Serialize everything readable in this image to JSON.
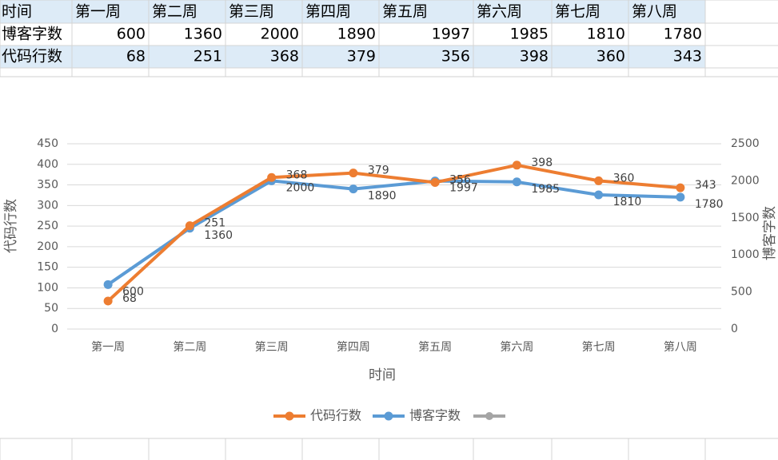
{
  "chart_data": {
    "type": "line",
    "x_label": "时间",
    "categories": [
      "第一周",
      "第二周",
      "第三周",
      "第四周",
      "第五周",
      "第六周",
      "第七周",
      "第八周"
    ],
    "series": [
      {
        "name": "代码行数",
        "color": "#ed7d31",
        "axis": "y",
        "values": [
          68,
          251,
          368,
          379,
          356,
          398,
          360,
          343
        ]
      },
      {
        "name": "博客字数",
        "color": "#5b9bd5",
        "axis": "y2",
        "values": [
          600,
          1360,
          2000,
          1890,
          1997,
          1985,
          1810,
          1780
        ]
      }
    ],
    "y_label": "代码行数",
    "y2_label": "博客字数",
    "ylim": [
      0,
      450
    ],
    "yticks": [
      0,
      50,
      100,
      150,
      200,
      250,
      300,
      350,
      400,
      450
    ],
    "y2lim": [
      0,
      2500
    ],
    "y2ticks": [
      0,
      500,
      1000,
      1500,
      2000,
      2500
    ],
    "grid": true,
    "legend": "bottom"
  }
}
